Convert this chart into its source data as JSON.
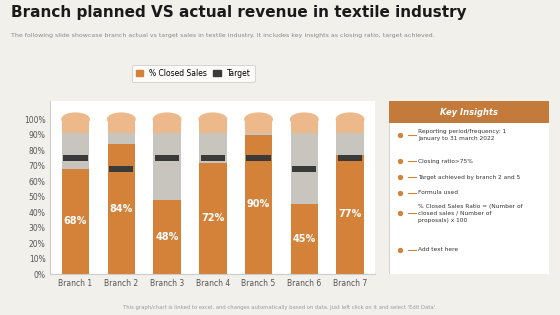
{
  "title": "Branch planned VS actual revenue in textile industry",
  "subtitle": "The following slide showcase branch actual vs target sales in textile industry. It includes key insights as closing ratio, target achieved.",
  "categories": [
    "Branch 1",
    "Branch 2",
    "Branch 3",
    "Branch 4",
    "Branch 5",
    "Branch 6",
    "Branch 7"
  ],
  "closed_sales": [
    68,
    84,
    48,
    72,
    90,
    45,
    77
  ],
  "target_line": [
    75,
    68,
    75,
    75,
    75,
    68,
    75
  ],
  "orange_color": "#D4813A",
  "light_orange_color": "#EDB98A",
  "gray_color": "#C8C5BE",
  "target_color": "#3A3A3A",
  "background_color": "#F2F0EB",
  "chart_bg": "#FFFFFF",
  "key_insights_bg": "#C47A3A",
  "key_insights_text_color": "#FFFFFF",
  "key_insights_title": "Key Insights",
  "footer": "This graph/chart is linked to excel, and changes automatically based on data. Just left click on it and select 'Edit Data'.",
  "title_fontsize": 11,
  "subtitle_fontsize": 4.5,
  "axis_fontsize": 5.5,
  "label_fontsize": 7
}
